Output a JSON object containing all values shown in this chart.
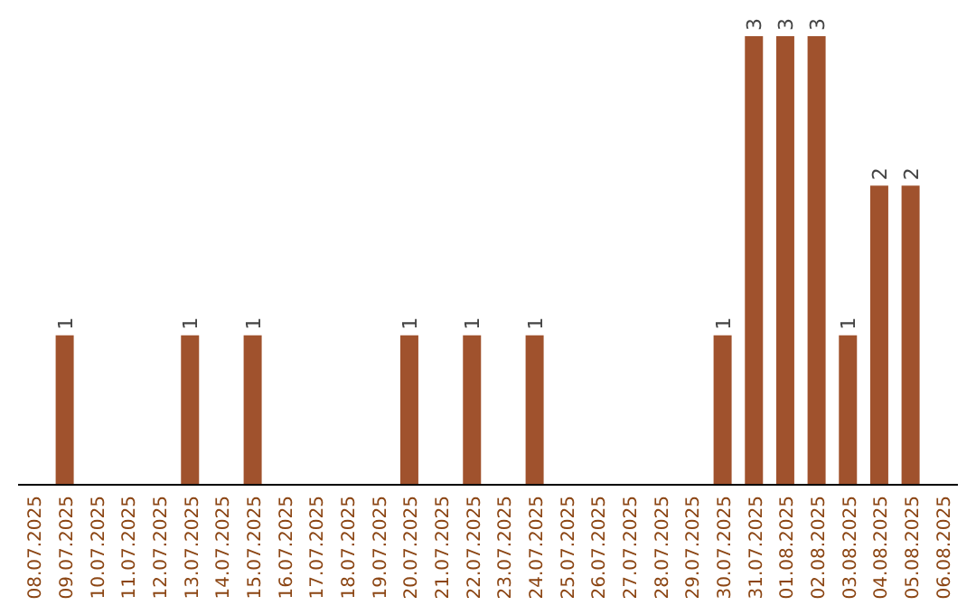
{
  "chart_data": {
    "type": "bar",
    "categories": [
      "08.07.2025",
      "09.07.2025",
      "10.07.2025",
      "11.07.2025",
      "12.07.2025",
      "13.07.2025",
      "14.07.2025",
      "15.07.2025",
      "16.07.2025",
      "17.07.2025",
      "18.07.2025",
      "19.07.2025",
      "20.07.2025",
      "21.07.2025",
      "22.07.2025",
      "23.07.2025",
      "24.07.2025",
      "25.07.2025",
      "26.07.2025",
      "27.07.2025",
      "28.07.2025",
      "29.07.2025",
      "30.07.2025",
      "31.07.2025",
      "01.08.2025",
      "02.08.2025",
      "03.08.2025",
      "04.08.2025",
      "05.08.2025",
      "06.08.2025"
    ],
    "values": [
      0,
      1,
      0,
      0,
      0,
      1,
      0,
      1,
      0,
      0,
      0,
      0,
      1,
      0,
      1,
      0,
      1,
      0,
      0,
      0,
      0,
      0,
      1,
      3,
      3,
      3,
      1,
      2,
      2,
      0
    ],
    "value_labels": [
      null,
      "1",
      null,
      null,
      null,
      "1",
      null,
      "1",
      null,
      null,
      null,
      null,
      "1",
      null,
      "1",
      null,
      "1",
      null,
      null,
      null,
      null,
      null,
      "1",
      "3",
      "3",
      "3",
      "1",
      "2",
      "2",
      null
    ],
    "color": "#a0522d",
    "tick_labels": "x"
  }
}
